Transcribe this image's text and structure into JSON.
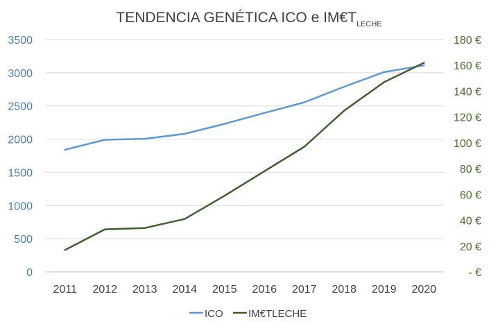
{
  "chart_data": {
    "type": "line",
    "title": {
      "main": "TENDENCIA GENÉTICA ICO e IM€T",
      "subscript": "LECHE"
    },
    "categories": [
      "2011",
      "2012",
      "2013",
      "2014",
      "2015",
      "2016",
      "2017",
      "2018",
      "2019",
      "2020"
    ],
    "series": [
      {
        "name": "ICO",
        "axis": "left",
        "color": "#5b9bd5",
        "values": [
          1840,
          1990,
          2005,
          2080,
          2230,
          2395,
          2555,
          2790,
          3010,
          3110
        ]
      },
      {
        "name": "IM€TLECHE",
        "axis": "right",
        "color": "#3f5f2e",
        "values": [
          17,
          33,
          34,
          41,
          59,
          78,
          97,
          125,
          147,
          162
        ]
      }
    ],
    "y_left": {
      "ylim": [
        0,
        3500
      ],
      "ticks": [
        0,
        500,
        1000,
        1500,
        2000,
        2500,
        3000,
        3500
      ],
      "tick_labels": [
        "0",
        "500",
        "1000",
        "1500",
        "2000",
        "2500",
        "3000",
        "3500"
      ],
      "color": "#4a7fb5"
    },
    "y_right": {
      "ylim": [
        0,
        180
      ],
      "ticks": [
        0,
        20,
        40,
        60,
        80,
        100,
        120,
        140,
        160,
        180
      ],
      "tick_labels": [
        "-  €",
        "20 €",
        "40 €",
        "60 €",
        "80 €",
        "100 €",
        "120 €",
        "140 €",
        "160 €",
        "180 €"
      ],
      "color": "#4a6e2a"
    },
    "grid": true,
    "legend": {
      "placement": "bottom",
      "entries": [
        "ICO",
        "IM€TLECHE"
      ]
    }
  }
}
